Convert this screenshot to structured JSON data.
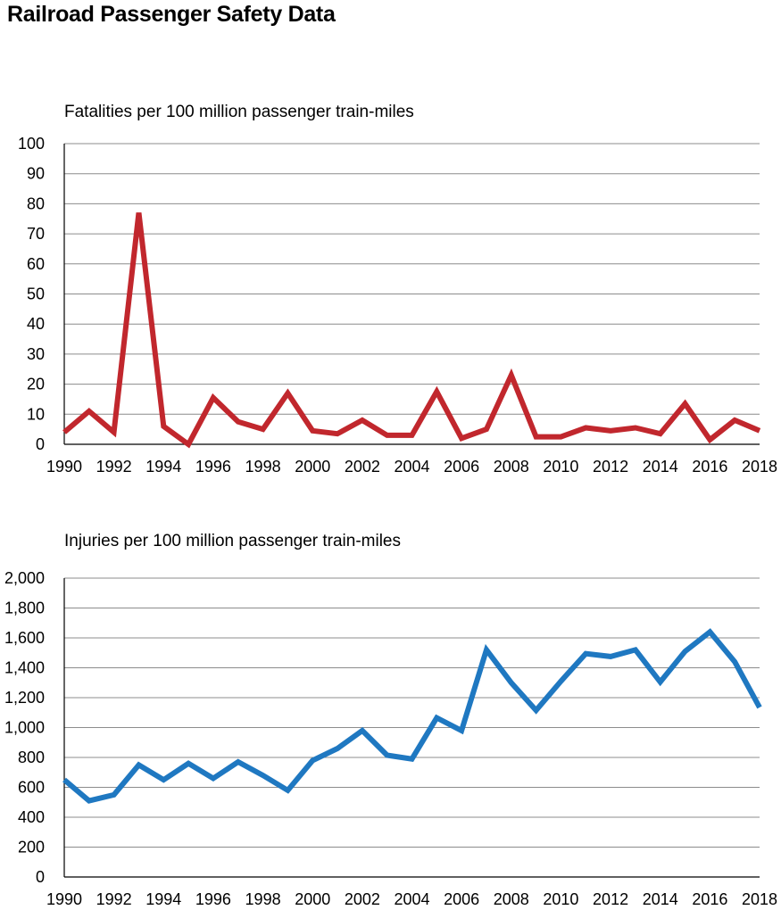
{
  "title": "Railroad Passenger Safety Data",
  "colors": {
    "fatalities": "#c1272d",
    "injuries": "#1f78c1"
  },
  "chart_data": [
    {
      "type": "line",
      "id": "fatalities",
      "title": "Fatalities per 100 million passenger train-miles",
      "xlabel": "",
      "ylabel": "",
      "x": [
        1990,
        1991,
        1992,
        1993,
        1994,
        1995,
        1996,
        1997,
        1998,
        1999,
        2000,
        2001,
        2002,
        2003,
        2004,
        2005,
        2006,
        2007,
        2008,
        2009,
        2010,
        2011,
        2012,
        2013,
        2014,
        2015,
        2016,
        2017,
        2018
      ],
      "series": [
        {
          "values": [
            4,
            11,
            4,
            77,
            6,
            0,
            15.5,
            7.5,
            5,
            17,
            4.5,
            3.5,
            8,
            3,
            3,
            17.5,
            2,
            5,
            23,
            2.5,
            2.5,
            5.5,
            4.5,
            5.5,
            3.5,
            13.5,
            1.5,
            8,
            4.5
          ]
        }
      ],
      "xlim": [
        1990,
        2018
      ],
      "ylim": [
        0,
        100
      ],
      "yticks": [
        0,
        10,
        20,
        30,
        40,
        50,
        60,
        70,
        80,
        90,
        100
      ],
      "ytick_labels": [
        "0",
        "10",
        "20",
        "30",
        "40",
        "50",
        "60",
        "70",
        "80",
        "90",
        "100"
      ],
      "xticks": [
        1990,
        1992,
        1994,
        1996,
        1998,
        2000,
        2002,
        2004,
        2006,
        2008,
        2010,
        2012,
        2014,
        2016,
        2018
      ],
      "xtick_labels": [
        "1990",
        "1992",
        "1994",
        "1996",
        "1998",
        "2000",
        "2002",
        "2004",
        "2006",
        "2008",
        "2010",
        "2012",
        "2014",
        "2016",
        "2018"
      ],
      "grid": true
    },
    {
      "type": "line",
      "id": "injuries",
      "title": "Injuries per 100 million passenger train-miles",
      "xlabel": "",
      "ylabel": "",
      "x": [
        1990,
        1991,
        1992,
        1993,
        1994,
        1995,
        1996,
        1997,
        1998,
        1999,
        2000,
        2001,
        2002,
        2003,
        2004,
        2005,
        2006,
        2007,
        2008,
        2009,
        2010,
        2011,
        2012,
        2013,
        2014,
        2015,
        2016,
        2017,
        2018
      ],
      "series": [
        {
          "values": [
            650,
            510,
            550,
            750,
            650,
            760,
            660,
            770,
            680,
            580,
            780,
            860,
            980,
            815,
            790,
            1065,
            980,
            1520,
            1300,
            1115,
            1310,
            1495,
            1475,
            1520,
            1305,
            1510,
            1640,
            1440,
            1135
          ]
        }
      ],
      "xlim": [
        1990,
        2018
      ],
      "ylim": [
        0,
        2000
      ],
      "yticks": [
        0,
        200,
        400,
        600,
        800,
        1000,
        1200,
        1400,
        1600,
        1800,
        2000
      ],
      "ytick_labels": [
        "0",
        "200",
        "400",
        "600",
        "800",
        "1,000",
        "1,200",
        "1,400",
        "1,600",
        "1,800",
        "2,000"
      ],
      "xticks": [
        1990,
        1992,
        1994,
        1996,
        1998,
        2000,
        2002,
        2004,
        2006,
        2008,
        2010,
        2012,
        2014,
        2016,
        2018
      ],
      "xtick_labels": [
        "1990",
        "1992",
        "1994",
        "1996",
        "1998",
        "2000",
        "2002",
        "2004",
        "2006",
        "2008",
        "2010",
        "2012",
        "2014",
        "2016",
        "2018"
      ],
      "grid": true
    }
  ]
}
